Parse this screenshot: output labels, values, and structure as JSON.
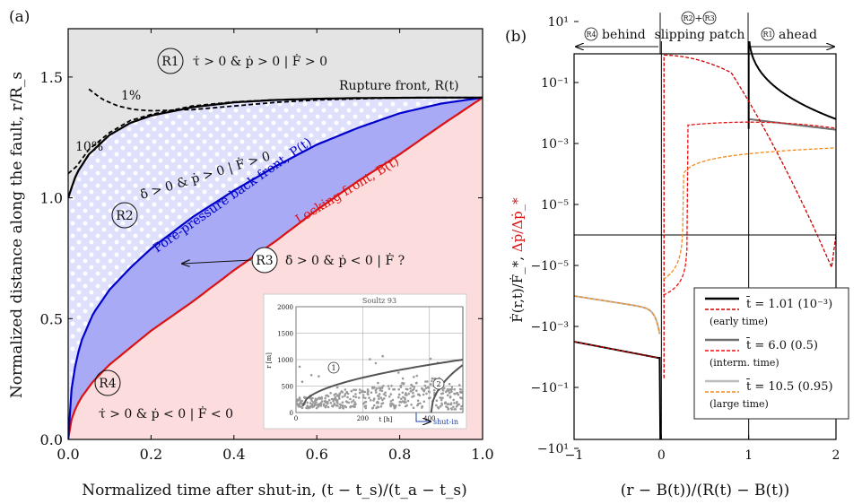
{
  "chart_data": [
    {
      "panel": "(a)",
      "type": "area",
      "xlabel": "Normalized time after shut-in, (t − t_s)/(t_a − t_s)",
      "ylabel": "Normalized distance along the fault, r/R_s",
      "xlim": [
        0,
        1
      ],
      "ylim": [
        0,
        1.7
      ],
      "x_ticks": [
        "0.0",
        "0.2",
        "0.4",
        "0.6",
        "0.8",
        "1.0"
      ],
      "y_ticks": [
        "0.0",
        "0.5",
        "1.0",
        "1.5"
      ],
      "series": [
        {
          "name": "Rupture front, R(t)",
          "color": "#000000",
          "x": [
            0,
            0.02,
            0.05,
            0.1,
            0.15,
            0.2,
            0.3,
            0.4,
            0.5,
            0.6,
            0.7,
            0.8,
            0.9,
            1.0
          ],
          "y": [
            1.0,
            1.1,
            1.18,
            1.26,
            1.31,
            1.34,
            1.375,
            1.395,
            1.405,
            1.41,
            1.413,
            1.414,
            1.415,
            1.415
          ]
        },
        {
          "name": "Pore-pressure back front, P(t)",
          "color": "#0000cc",
          "x": [
            0,
            0.01,
            0.03,
            0.06,
            0.1,
            0.15,
            0.2,
            0.3,
            0.4,
            0.5,
            0.6,
            0.7,
            0.8,
            0.9,
            1.0
          ],
          "y": [
            0,
            0.25,
            0.4,
            0.52,
            0.62,
            0.71,
            0.79,
            0.92,
            1.03,
            1.13,
            1.22,
            1.29,
            1.35,
            1.39,
            1.415
          ]
        },
        {
          "name": "Locking front, B(t)",
          "color": "#dd1111",
          "x": [
            0,
            0.01,
            0.03,
            0.06,
            0.1,
            0.15,
            0.2,
            0.3,
            0.4,
            0.5,
            0.6,
            0.7,
            0.8,
            0.9,
            1.0
          ],
          "y": [
            0,
            0.1,
            0.17,
            0.24,
            0.31,
            0.38,
            0.45,
            0.57,
            0.7,
            0.82,
            0.95,
            1.07,
            1.18,
            1.3,
            1.415
          ]
        },
        {
          "name": "1%",
          "color": "#000000",
          "style": "dashed",
          "x": [
            0.05,
            0.08,
            0.12,
            0.16,
            0.2,
            0.3,
            0.4,
            0.5,
            0.6,
            0.7,
            0.8,
            0.9,
            1.0
          ],
          "y": [
            1.45,
            1.41,
            1.38,
            1.365,
            1.36,
            1.365,
            1.38,
            1.395,
            1.405,
            1.41,
            1.414,
            1.415,
            1.415
          ]
        },
        {
          "name": "10%",
          "color": "#000000",
          "style": "dashed",
          "x": [
            0,
            0.02,
            0.05,
            0.1,
            0.15,
            0.2,
            0.3,
            0.4,
            0.5
          ],
          "y": [
            1.1,
            1.13,
            1.2,
            1.27,
            1.32,
            1.345,
            1.38,
            1.397,
            1.406
          ]
        }
      ],
      "region_labels": {
        "r1": "R1",
        "r1_text": "τ̇ > 0 & ṗ > 0 | Ḟ > 0",
        "r2": "R2",
        "r2_text": "δ̇ > 0 & ṗ > 0 | Ḟ > 0",
        "r3": "R3",
        "r3_text": "δ̇ > 0 & ṗ < 0 | Ḟ ?",
        "r4": "R4",
        "r4_text": "τ̇ > 0 & ṗ < 0 | Ḟ < 0"
      },
      "contour_labels": [
        "1%",
        "10%"
      ],
      "inset": {
        "title": "Soultz 93",
        "ylabel": "r [m]",
        "xlabel": "t [h]",
        "x_ticks": [
          "0",
          "200",
          "400"
        ],
        "y_ticks": [
          "0",
          "500",
          "1000",
          "1500",
          "2000"
        ],
        "region_1": "1",
        "region_2": "2",
        "shutin_label": "shut-in"
      }
    },
    {
      "panel": "(b)",
      "type": "line",
      "xlabel": "(r − B(t))/(R(t) − B(t))",
      "ylabel_black": "Ḟ(r,t)/Ḟ_*",
      "ylabel_red": "Δṗ/Δṗ_*",
      "x_ticks": [
        "−1",
        "0",
        "1",
        "2"
      ],
      "y_ticks": [
        "10¹",
        "10⁻¹",
        "10⁻³",
        "10⁻⁵",
        "−10⁻⁵",
        "−10⁻³",
        "−10⁻¹",
        "−10¹"
      ],
      "top_labels": {
        "left_circle": "R4",
        "left_text": "behind",
        "mid_circle_a": "R2",
        "mid_plus": "+",
        "mid_circle_b": "R3",
        "mid_text": "slipping patch",
        "right_circle": "R1",
        "right_text": "ahead"
      },
      "legend": [
        {
          "label": "t̄ = 1.01 (10⁻³)",
          "sub": "(early time)",
          "color": "#000000",
          "dash_color": "#cc0000"
        },
        {
          "label": "t̄ = 6.0 (0.5)",
          "sub": "(interm. time)",
          "color": "#707070",
          "dash_color": "#ee1111"
        },
        {
          "label": "t̄ = 10.5 (0.95)",
          "sub": "(large time)",
          "color": "#bbbbbb",
          "dash_color": "#f08a1c"
        }
      ]
    }
  ]
}
